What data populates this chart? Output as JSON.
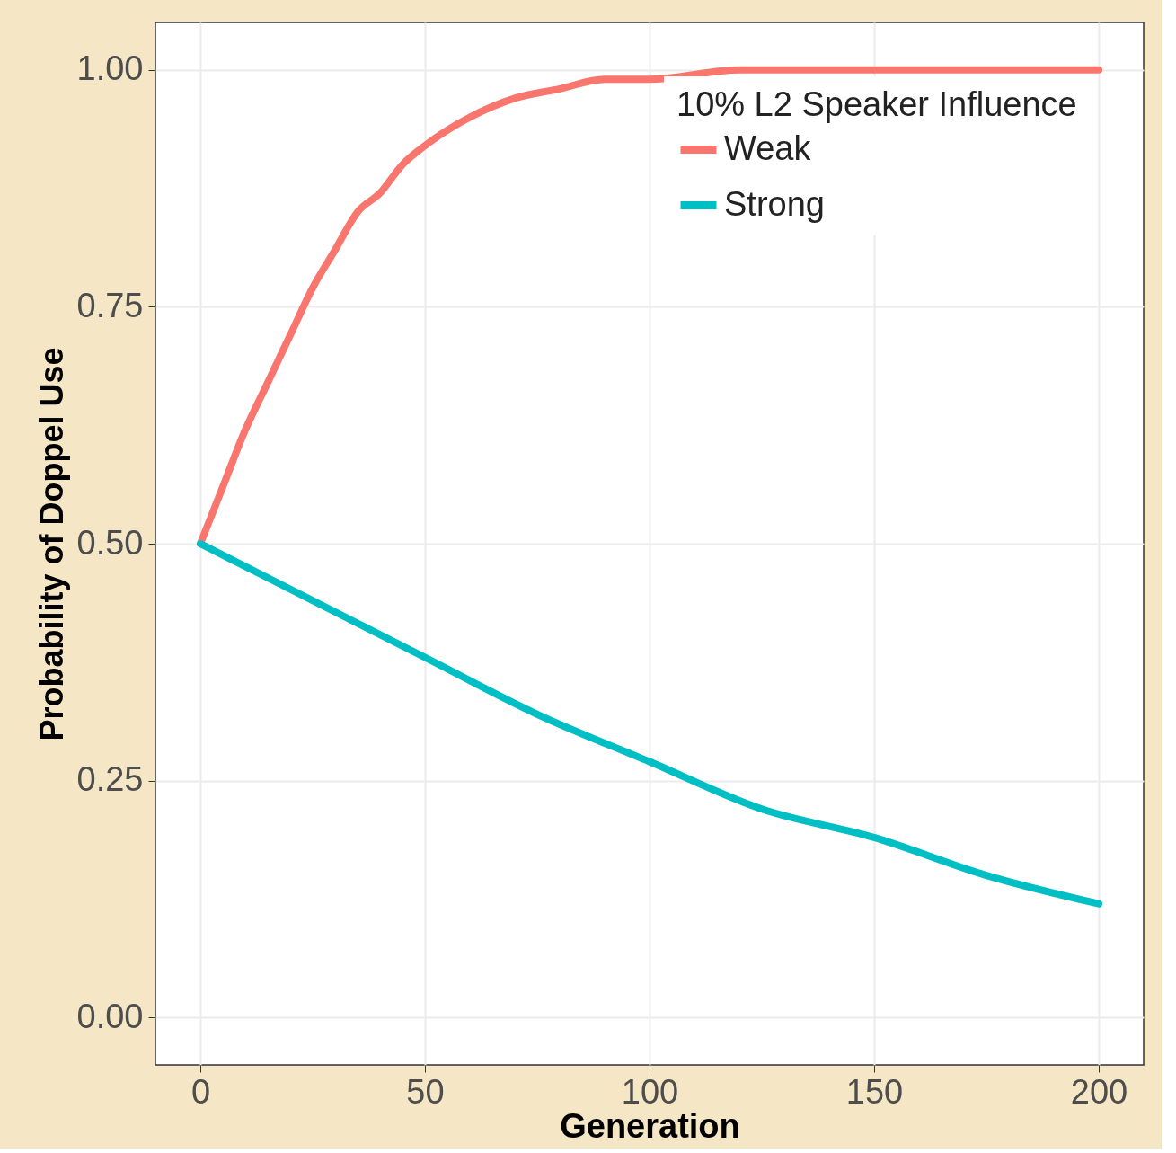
{
  "chart_data": {
    "type": "line",
    "xlabel": "Generation",
    "ylabel": "Probability of Doppel Use",
    "legend_title": "10% L2 Speaker Influence",
    "xlim": [
      -10,
      210
    ],
    "ylim": [
      -0.05,
      1.05
    ],
    "xticks": [
      0,
      50,
      100,
      150,
      200
    ],
    "yticks": [
      {
        "value": 0,
        "label": "0.00"
      },
      {
        "value": 0.25,
        "label": "0.25"
      },
      {
        "value": 0.5,
        "label": "0.50"
      },
      {
        "value": 0.75,
        "label": "0.75"
      },
      {
        "value": 1,
        "label": "1.00"
      }
    ],
    "grid": true,
    "legend": "top right",
    "series": [
      {
        "name": "Weak",
        "color": "#f8766d",
        "x": [
          0,
          5,
          10,
          15,
          20,
          25,
          30,
          35,
          40,
          45,
          50,
          60,
          70,
          80,
          90,
          100,
          120,
          150,
          200
        ],
        "values": [
          0.5,
          0.56,
          0.62,
          0.67,
          0.72,
          0.77,
          0.81,
          0.85,
          0.87,
          0.9,
          0.92,
          0.95,
          0.97,
          0.98,
          0.99,
          0.99,
          1.0,
          1.0,
          1.0
        ]
      },
      {
        "name": "Strong",
        "color": "#00bfc4",
        "x": [
          0,
          25,
          50,
          75,
          100,
          125,
          150,
          175,
          200
        ],
        "values": [
          0.5,
          0.44,
          0.38,
          0.32,
          0.27,
          0.22,
          0.19,
          0.15,
          0.12
        ]
      }
    ]
  }
}
